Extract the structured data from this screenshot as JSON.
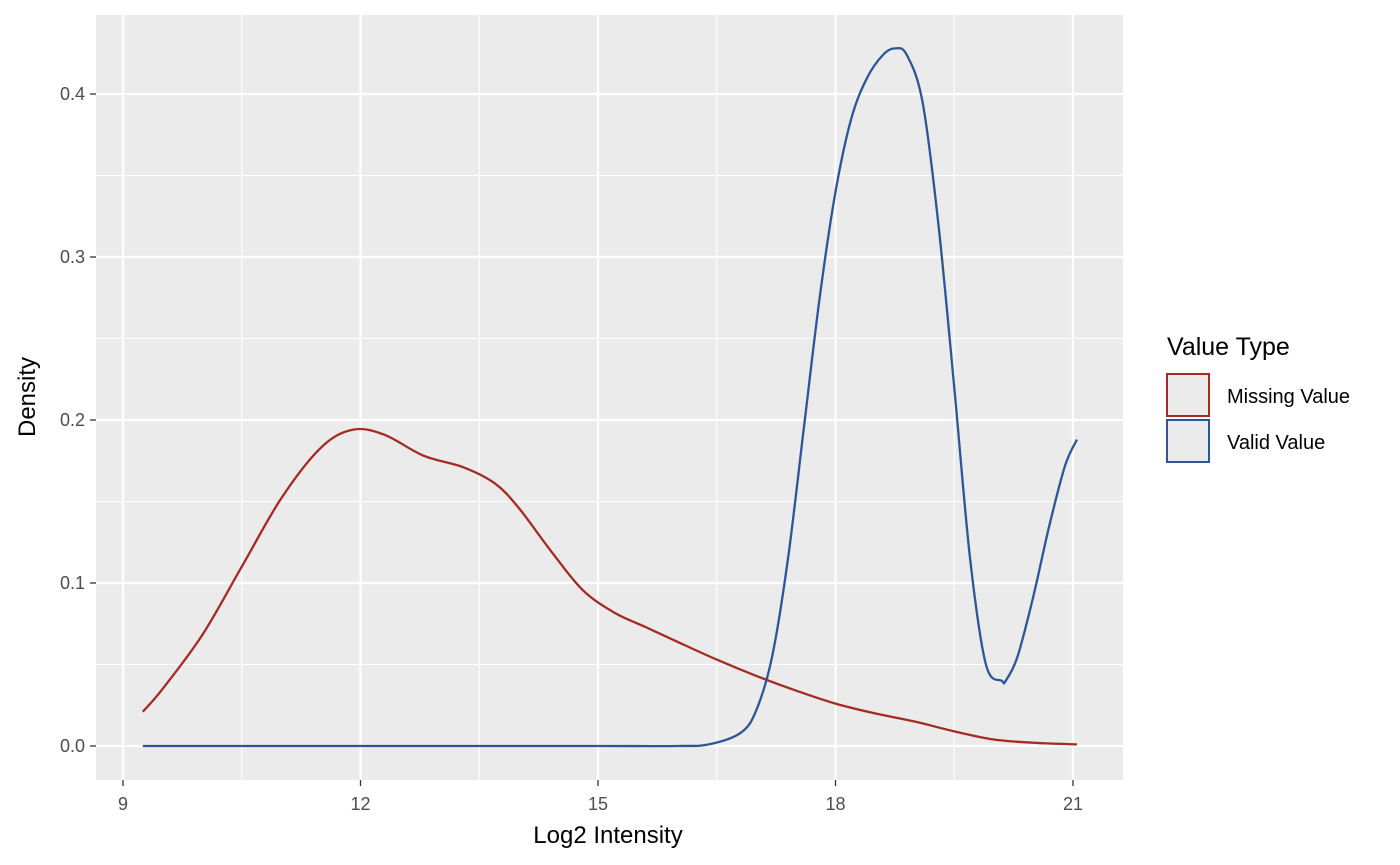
{
  "chart_data": {
    "type": "line",
    "subtype": "density",
    "xlabel": "Log2 Intensity",
    "ylabel": "Density",
    "xlim": [
      9,
      21
    ],
    "ylim": [
      0,
      0.44
    ],
    "x_ticks": [
      9,
      12,
      15,
      18,
      21
    ],
    "x_tick_labels": [
      "9",
      "12",
      "15",
      "18",
      "21"
    ],
    "y_ticks": [
      0.0,
      0.1,
      0.2,
      0.3,
      0.4
    ],
    "y_tick_labels": [
      "0.0",
      "0.1",
      "0.2",
      "0.3",
      "0.4"
    ],
    "grid": true,
    "panel_background": "#ebebeb",
    "grid_color": "#ffffff",
    "legend": {
      "title": "Value Type",
      "position": "right"
    },
    "series": [
      {
        "name": "Missing Value",
        "color": "#a52a24",
        "x": [
          9.25,
          9.5,
          10.0,
          10.5,
          11.0,
          11.5,
          11.9,
          12.3,
          12.8,
          13.3,
          13.7,
          14.0,
          14.4,
          14.8,
          15.2,
          15.6,
          16.0,
          16.5,
          17.0,
          17.5,
          18.0,
          18.5,
          19.0,
          19.5,
          20.0,
          20.5,
          21.05
        ],
        "y": [
          0.021,
          0.035,
          0.068,
          0.11,
          0.152,
          0.183,
          0.194,
          0.191,
          0.178,
          0.171,
          0.161,
          0.146,
          0.12,
          0.096,
          0.082,
          0.073,
          0.064,
          0.053,
          0.043,
          0.034,
          0.026,
          0.02,
          0.015,
          0.009,
          0.004,
          0.002,
          0.001
        ]
      },
      {
        "name": "Valid Value",
        "color": "#2e5597",
        "x": [
          9.25,
          10.0,
          11.0,
          12.0,
          13.0,
          14.0,
          15.0,
          16.0,
          16.4,
          16.8,
          17.0,
          17.2,
          17.4,
          17.6,
          17.8,
          18.0,
          18.2,
          18.4,
          18.6,
          18.75,
          18.9,
          19.1,
          19.3,
          19.5,
          19.7,
          19.9,
          20.1,
          20.15,
          20.3,
          20.5,
          20.7,
          20.9,
          21.05
        ],
        "y": [
          0.0,
          0.0,
          0.0,
          0.0,
          0.0,
          0.0,
          0.0,
          0.0,
          0.001,
          0.008,
          0.022,
          0.055,
          0.115,
          0.195,
          0.275,
          0.34,
          0.385,
          0.41,
          0.424,
          0.428,
          0.424,
          0.395,
          0.32,
          0.22,
          0.115,
          0.05,
          0.04,
          0.04,
          0.055,
          0.092,
          0.135,
          0.172,
          0.188
        ]
      }
    ]
  }
}
